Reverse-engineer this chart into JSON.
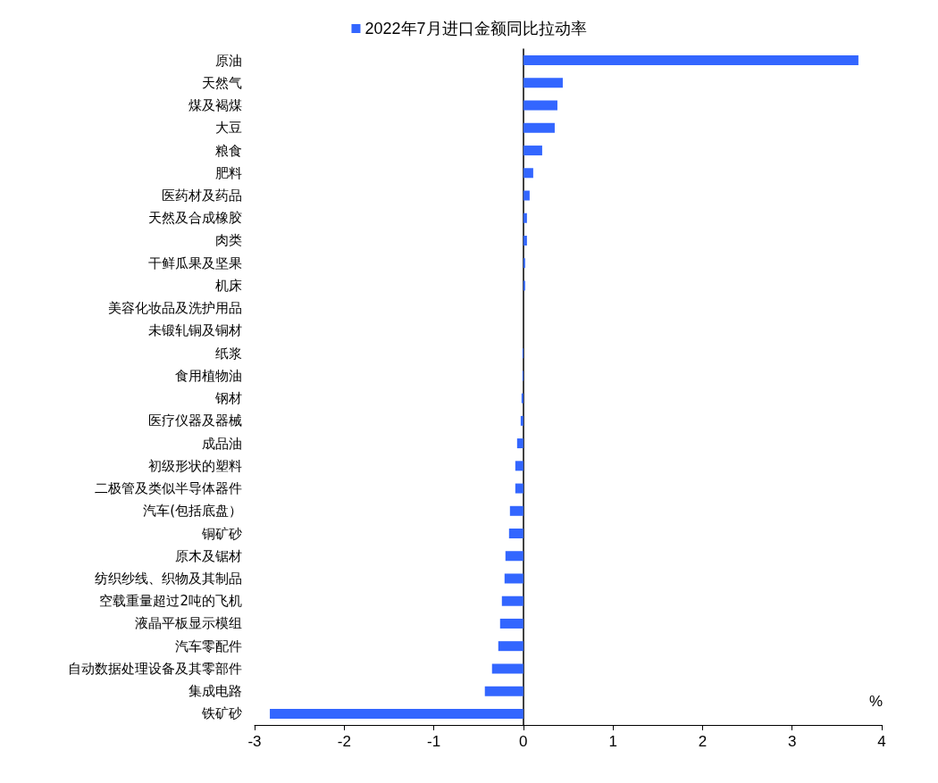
{
  "chart_data": {
    "type": "bar",
    "orientation": "horizontal",
    "xlabel": "%",
    "categories": [
      "原油",
      "天然气",
      "煤及褐煤",
      "大豆",
      "粮食",
      "肥料",
      "医药材及药品",
      "天然及合成橡胶",
      "肉类",
      "干鲜瓜果及坚果",
      "机床",
      "美容化妆品及洗护用品",
      "未锻轧铜及铜材",
      "纸浆",
      "食用植物油",
      "钢材",
      "医疗仪器及器械",
      "成品油",
      "初级形状的塑料",
      "二极管及类似半导体器件",
      "汽车(包括底盘）",
      "铜矿砂",
      "原木及锯材",
      "纺织纱线、织物及其制品",
      "空载重量超过2吨的飞机",
      "液晶平板显示模组",
      "汽车零配件",
      "自动数据处理设备及其零部件",
      "集成电路",
      "铁矿砂"
    ],
    "series": [
      {
        "name": "2022年7月进口金额同比拉动率",
        "color": "#3366ff",
        "values": [
          3.74,
          0.44,
          0.38,
          0.35,
          0.21,
          0.11,
          0.07,
          0.04,
          0.04,
          0.02,
          0.02,
          0,
          0,
          -0.01,
          -0.01,
          -0.02,
          -0.03,
          -0.07,
          -0.09,
          -0.09,
          -0.15,
          -0.16,
          -0.2,
          -0.21,
          -0.24,
          -0.26,
          -0.28,
          -0.35,
          -0.43,
          -2.83
        ]
      }
    ],
    "xlim": [
      -3,
      4
    ],
    "xticks": [
      -3,
      -2,
      -1,
      0,
      1,
      2,
      3,
      4
    ],
    "legend": "top"
  }
}
